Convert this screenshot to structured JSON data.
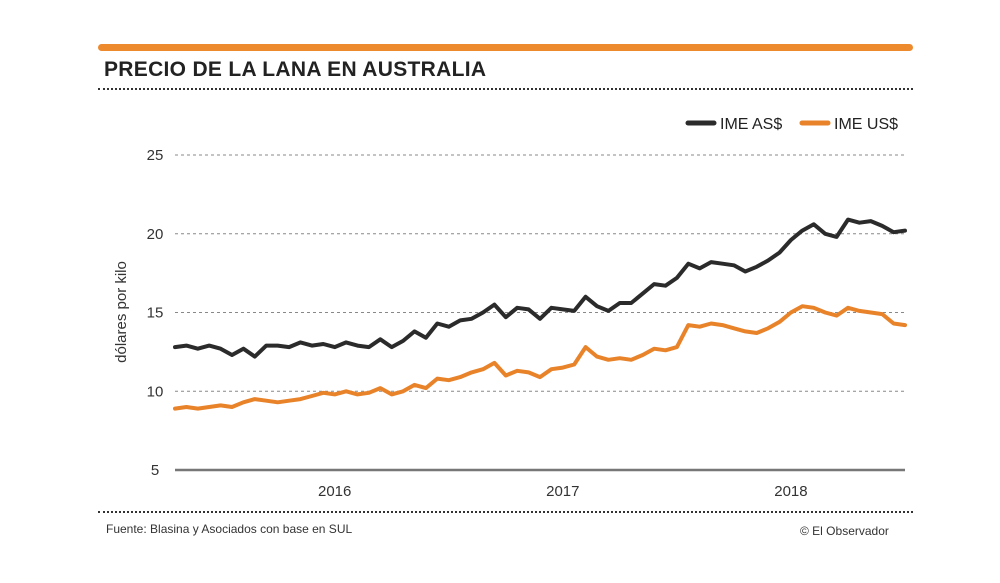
{
  "title": "PRECIO DE LA LANA EN AUSTRALIA",
  "source": "Fuente: Blasina y Asociados con base en SUL",
  "credit": "© El Observador",
  "colors": {
    "accent": "#ee8a2e",
    "series_dark": "#2b2b2b",
    "series_orange": "#e8832a",
    "grid": "#888888"
  },
  "chart_data": {
    "type": "line",
    "title": "PRECIO DE LA LANA EN AUSTRALIA",
    "xlabel": "",
    "ylabel": "dólares por kilo",
    "xlim": [
      2015.35,
      2018.55
    ],
    "ylim": [
      5,
      25
    ],
    "yticks": [
      5,
      10,
      15,
      20,
      25
    ],
    "xticks": [
      {
        "value": 2016,
        "label": "2016"
      },
      {
        "value": 2017,
        "label": "2017"
      },
      {
        "value": 2018,
        "label": "2018"
      }
    ],
    "grid": true,
    "legend": "top-right",
    "series": [
      {
        "name": "IME AS$",
        "color": "#2b2b2b",
        "x": [
          2015.35,
          2015.4,
          2015.45,
          2015.5,
          2015.55,
          2015.6,
          2015.65,
          2015.7,
          2015.75,
          2015.8,
          2015.85,
          2015.9,
          2015.95,
          2016.0,
          2016.05,
          2016.1,
          2016.15,
          2016.2,
          2016.25,
          2016.3,
          2016.35,
          2016.4,
          2016.45,
          2016.5,
          2016.55,
          2016.6,
          2016.65,
          2016.7,
          2016.75,
          2016.8,
          2016.85,
          2016.9,
          2016.95,
          2017.0,
          2017.05,
          2017.1,
          2017.15,
          2017.2,
          2017.25,
          2017.3,
          2017.35,
          2017.4,
          2017.45,
          2017.5,
          2017.55,
          2017.6,
          2017.65,
          2017.7,
          2017.75,
          2017.8,
          2017.85,
          2017.9,
          2017.95,
          2018.0,
          2018.05,
          2018.1,
          2018.15,
          2018.2,
          2018.25,
          2018.3,
          2018.35,
          2018.4,
          2018.45,
          2018.5,
          2018.55
        ],
        "values": [
          12.8,
          12.9,
          12.7,
          12.9,
          12.7,
          12.3,
          12.7,
          12.2,
          12.9,
          12.9,
          12.8,
          13.1,
          12.9,
          13.0,
          12.8,
          13.1,
          12.9,
          12.8,
          13.3,
          12.8,
          13.2,
          13.8,
          13.4,
          14.3,
          14.1,
          14.5,
          14.6,
          15.0,
          15.5,
          14.7,
          15.3,
          15.2,
          14.6,
          15.3,
          15.2,
          15.1,
          16.0,
          15.4,
          15.1,
          15.6,
          15.6,
          16.2,
          16.8,
          16.7,
          17.2,
          18.1,
          17.8,
          18.2,
          18.1,
          18.0,
          17.6,
          17.9,
          18.3,
          18.8,
          19.6,
          20.2,
          20.6,
          20.0,
          19.8,
          20.9,
          20.7,
          20.8,
          20.5,
          20.1,
          20.2
        ]
      },
      {
        "name": "IME US$",
        "color": "#e8832a",
        "x": [
          2015.35,
          2015.4,
          2015.45,
          2015.5,
          2015.55,
          2015.6,
          2015.65,
          2015.7,
          2015.75,
          2015.8,
          2015.85,
          2015.9,
          2015.95,
          2016.0,
          2016.05,
          2016.1,
          2016.15,
          2016.2,
          2016.25,
          2016.3,
          2016.35,
          2016.4,
          2016.45,
          2016.5,
          2016.55,
          2016.6,
          2016.65,
          2016.7,
          2016.75,
          2016.8,
          2016.85,
          2016.9,
          2016.95,
          2017.0,
          2017.05,
          2017.1,
          2017.15,
          2017.2,
          2017.25,
          2017.3,
          2017.35,
          2017.4,
          2017.45,
          2017.5,
          2017.55,
          2017.6,
          2017.65,
          2017.7,
          2017.75,
          2017.8,
          2017.85,
          2017.9,
          2017.95,
          2018.0,
          2018.05,
          2018.1,
          2018.15,
          2018.2,
          2018.25,
          2018.3,
          2018.35,
          2018.4,
          2018.45,
          2018.5,
          2018.55
        ],
        "values": [
          8.9,
          9.0,
          8.9,
          9.0,
          9.1,
          9.0,
          9.3,
          9.5,
          9.4,
          9.3,
          9.4,
          9.5,
          9.7,
          9.9,
          9.8,
          10.0,
          9.8,
          9.9,
          10.2,
          9.8,
          10.0,
          10.4,
          10.2,
          10.8,
          10.7,
          10.9,
          11.2,
          11.4,
          11.8,
          11.0,
          11.3,
          11.2,
          10.9,
          11.4,
          11.5,
          11.7,
          12.8,
          12.2,
          12.0,
          12.1,
          12.0,
          12.3,
          12.7,
          12.6,
          12.8,
          14.2,
          14.1,
          14.3,
          14.2,
          14.0,
          13.8,
          13.7,
          14.0,
          14.4,
          15.0,
          15.4,
          15.3,
          15.0,
          14.8,
          15.3,
          15.1,
          15.0,
          14.9,
          14.3,
          14.2
        ]
      }
    ]
  }
}
